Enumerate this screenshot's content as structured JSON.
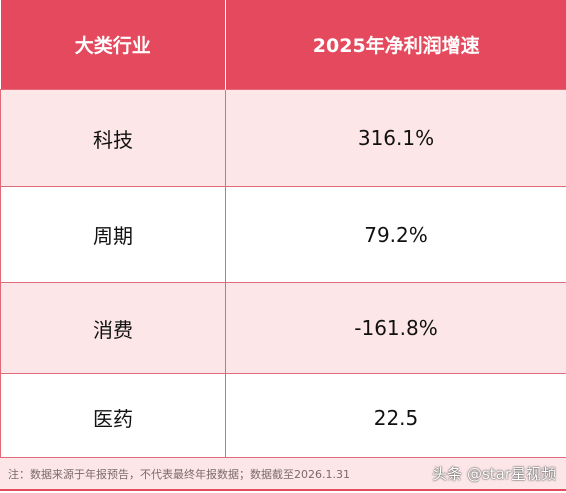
{
  "table": {
    "headers": [
      "大类行业",
      "2025年净利润增速"
    ],
    "rows": [
      {
        "industry": "科技",
        "growth": "316.1%"
      },
      {
        "industry": "周期",
        "growth": "79.2%"
      },
      {
        "industry": "消费",
        "growth": "-161.8%"
      },
      {
        "industry": "医药",
        "growth": "22.5"
      }
    ]
  },
  "footer": {
    "note": "注：数据来源于年报预告，不代表最终年报数据；数据截至2026.1.31",
    "watermark": "头条 @star星视频"
  },
  "colors": {
    "header_bg": "#e5495d",
    "row_tint": "#fce6e8",
    "border": "#e06a78"
  }
}
